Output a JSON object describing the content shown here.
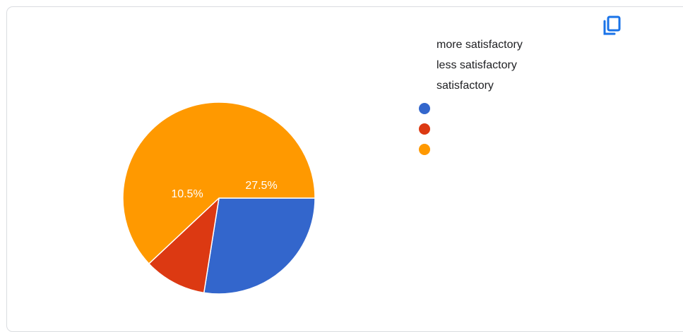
{
  "copy_icon": "copy-icon",
  "chart_data": {
    "type": "pie",
    "title": "",
    "slices": [
      {
        "label": "more satisfactory",
        "value": 27.5,
        "display": "27.5%",
        "color": "#3366cc"
      },
      {
        "label": "less satisfactory",
        "value": 10.5,
        "display": "10.5%",
        "color": "#dc3912"
      },
      {
        "label": "satisfactory",
        "value": 62.0,
        "display": "",
        "color": "#ff9900"
      }
    ],
    "legend_position": "right"
  }
}
